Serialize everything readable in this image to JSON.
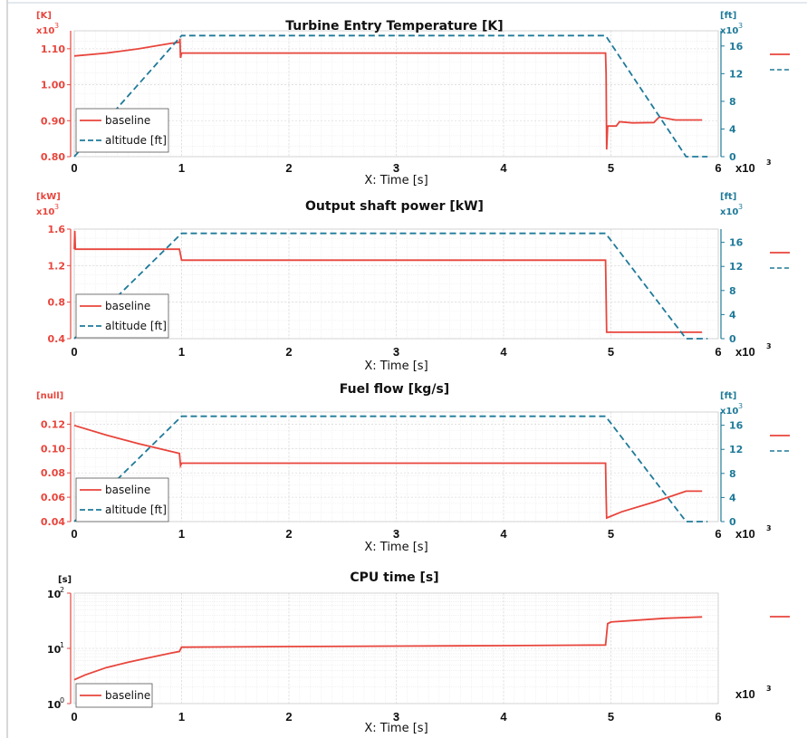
{
  "colors": {
    "baseline": "#e8453c",
    "altitude": "#1f7a99",
    "grid": "#dddddd",
    "frame": "#b0b0b0"
  },
  "legend_top_margin": {
    "baseline_swatch": "baseline-swatch",
    "altitude_swatch": "altitude-swatch"
  },
  "common": {
    "xlabel": "X: Time [s]",
    "x_dash_mark": "-",
    "x_exponent": "x10",
    "x_exponent_power": "3"
  },
  "chart_data": [
    {
      "type": "line",
      "title": "Turbine Entry Temperature [K]",
      "xlabel": "X: Time [s]",
      "x_unit_scale": "x10 3",
      "xlim": [
        0,
        6
      ],
      "xticks": [
        "0",
        "1",
        "2",
        "3",
        "4",
        "5",
        "6"
      ],
      "left_unit": "[K]",
      "left_scale": "x10",
      "left_scale_power": "3",
      "ylim": [
        0.8,
        1.15
      ],
      "yticks": [
        "0.80",
        "0.90",
        "1.00",
        "1.10"
      ],
      "ytick_values": [
        0.8,
        0.9,
        1.0,
        1.1
      ],
      "right_unit": "[ft]",
      "right_scale": "x10",
      "right_scale_power": "3",
      "y2lim": [
        0,
        18.2
      ],
      "y2ticks": [
        "0",
        "4",
        "8",
        "12",
        "16"
      ],
      "y2tick_values": [
        0,
        4,
        8,
        12,
        16
      ],
      "legend": [
        "baseline",
        "altitude [ft]"
      ],
      "series": [
        {
          "name": "baseline",
          "axis": "left",
          "style": "solid",
          "x": [
            0,
            0.3,
            0.6,
            0.9,
            0.98,
            0.985,
            0.99,
            1.0,
            4.95,
            4.955,
            4.96,
            4.97,
            5.05,
            5.08,
            5.2,
            5.4,
            5.45,
            5.6,
            5.85
          ],
          "y": [
            1.08,
            1.088,
            1.1,
            1.115,
            1.118,
            1.128,
            1.075,
            1.088,
            1.088,
            1.03,
            0.82,
            0.885,
            0.885,
            0.897,
            0.894,
            0.895,
            0.91,
            0.902,
            0.902
          ]
        },
        {
          "name": "altitude [ft]",
          "axis": "right",
          "style": "dashed",
          "x": [
            0,
            1.0,
            4.95,
            5.7,
            5.9
          ],
          "y": [
            0,
            17.5,
            17.5,
            0,
            0
          ]
        }
      ]
    },
    {
      "type": "line",
      "title": "Output shaft power [kW]",
      "xlabel": "X: Time [s]",
      "x_unit_scale": "x10 3",
      "xlim": [
        0,
        6
      ],
      "xticks": [
        "0",
        "1",
        "2",
        "3",
        "4",
        "5",
        "6"
      ],
      "left_unit": "[kW]",
      "left_scale": "x10",
      "left_scale_power": "3",
      "ylim": [
        0.4,
        1.6
      ],
      "yticks": [
        "0.4",
        "0.8",
        "1.2",
        "1.6"
      ],
      "ytick_values": [
        0.4,
        0.8,
        1.2,
        1.6
      ],
      "right_unit": "[ft]",
      "right_scale": "x10",
      "right_scale_power": "3",
      "y2lim": [
        0,
        18.2
      ],
      "y2ticks": [
        "0",
        "4",
        "8",
        "12",
        "16"
      ],
      "y2tick_values": [
        0,
        4,
        8,
        12,
        16
      ],
      "legend": [
        "baseline",
        "altitude [ft]"
      ],
      "series": [
        {
          "name": "baseline",
          "axis": "left",
          "style": "solid",
          "x": [
            0,
            0.005,
            0.01,
            0.98,
            1.0,
            4.95,
            4.96,
            5.85
          ],
          "y": [
            1.38,
            1.58,
            1.38,
            1.38,
            1.26,
            1.26,
            0.47,
            0.47
          ]
        },
        {
          "name": "altitude [ft]",
          "axis": "right",
          "style": "dashed",
          "x": [
            0,
            1.0,
            4.95,
            5.7,
            5.9
          ],
          "y": [
            0,
            17.5,
            17.5,
            0,
            0
          ]
        }
      ]
    },
    {
      "type": "line",
      "title": "Fuel flow [kg/s]",
      "xlabel": "X: Time [s]",
      "x_unit_scale": "x10 3",
      "xlim": [
        0,
        6
      ],
      "xticks": [
        "0",
        "1",
        "2",
        "3",
        "4",
        "5",
        "6"
      ],
      "left_unit": "[null]",
      "left_scale": "",
      "left_scale_power": "",
      "ylim": [
        0.04,
        0.13
      ],
      "yticks": [
        "0.04",
        "0.06",
        "0.08",
        "0.10",
        "0.12"
      ],
      "ytick_values": [
        0.04,
        0.06,
        0.08,
        0.1,
        0.12
      ],
      "right_unit": "[ft]",
      "right_scale": "x10",
      "right_scale_power": "3",
      "y2lim": [
        0,
        18.2
      ],
      "y2ticks": [
        "0",
        "4",
        "8",
        "12",
        "16"
      ],
      "y2tick_values": [
        0,
        4,
        8,
        12,
        16
      ],
      "legend": [
        "baseline",
        "altitude [ft]"
      ],
      "series": [
        {
          "name": "baseline",
          "axis": "left",
          "style": "solid",
          "x": [
            0,
            0.3,
            0.6,
            0.98,
            0.99,
            1.0,
            4.95,
            4.955,
            4.96,
            5.1,
            5.4,
            5.7,
            5.85
          ],
          "y": [
            0.119,
            0.111,
            0.104,
            0.096,
            0.086,
            0.088,
            0.088,
            0.062,
            0.043,
            0.048,
            0.056,
            0.065,
            0.065
          ]
        },
        {
          "name": "altitude [ft]",
          "axis": "right",
          "style": "dashed",
          "x": [
            0,
            1.0,
            4.95,
            5.7,
            5.9
          ],
          "y": [
            0,
            17.5,
            17.5,
            0,
            0
          ]
        }
      ]
    },
    {
      "type": "line",
      "title": "CPU time [s]",
      "xlabel": "X: Time [s]",
      "x_unit_scale": "x10 3",
      "xlim": [
        0,
        6
      ],
      "xticks": [
        "0",
        "1",
        "2",
        "3",
        "4",
        "5",
        "6"
      ],
      "left_unit": "[s]",
      "y_scale": "log",
      "ylim": [
        1,
        100
      ],
      "yticks_base": [
        "10",
        "10",
        "10"
      ],
      "yticks_power": [
        "0",
        "1",
        "2"
      ],
      "ytick_values": [
        1,
        10,
        100
      ],
      "legend": [
        "baseline"
      ],
      "series": [
        {
          "name": "baseline",
          "axis": "left",
          "style": "solid",
          "x": [
            0,
            0.1,
            0.3,
            0.5,
            0.7,
            0.9,
            0.98,
            1.0,
            2.0,
            3.0,
            4.0,
            4.95,
            4.97,
            5.0,
            5.5,
            5.85
          ],
          "y": [
            2.7,
            3.3,
            4.5,
            5.6,
            6.8,
            8.2,
            8.8,
            10.5,
            10.8,
            11.0,
            11.2,
            11.5,
            28,
            30,
            35,
            37
          ]
        }
      ]
    }
  ]
}
